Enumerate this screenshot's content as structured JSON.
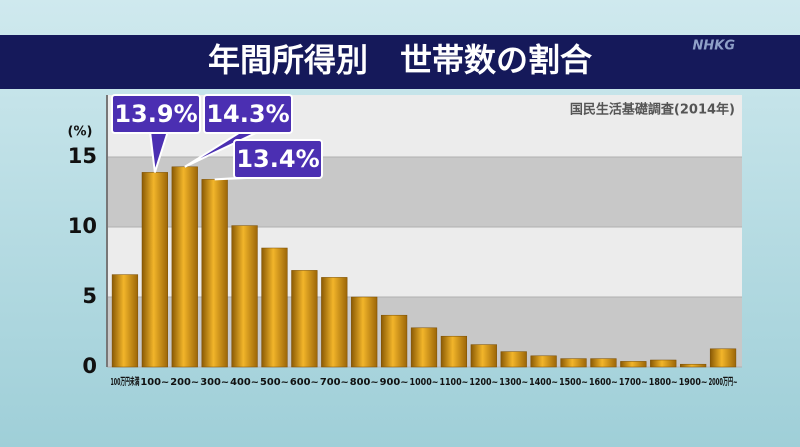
{
  "chart_data": {
    "type": "bar",
    "title": "年間所得別　世帯数の割合",
    "source": "国民生活基礎調査(2014年)",
    "logo": "NHKG",
    "y_label": "(%)",
    "categories": [
      "100万円未満",
      "100~",
      "200~",
      "300~",
      "400~",
      "500~",
      "600~",
      "700~",
      "800~",
      "900~",
      "1000~",
      "1100~",
      "1200~",
      "1300~",
      "1400~",
      "1500~",
      "1600~",
      "1700~",
      "1800~",
      "1900~",
      "2000万円~"
    ],
    "values": [
      6.6,
      13.9,
      14.3,
      13.4,
      10.1,
      8.5,
      6.9,
      6.4,
      5.0,
      3.7,
      2.8,
      2.2,
      1.6,
      1.1,
      0.8,
      0.6,
      0.6,
      0.4,
      0.5,
      0.2,
      1.3
    ],
    "value_labels": [
      null,
      "13.9%",
      "14.3%",
      "13.4%",
      null,
      null,
      null,
      null,
      null,
      null,
      null,
      null,
      null,
      null,
      null,
      null,
      null,
      null,
      null,
      null,
      null
    ],
    "color": "#d9920f",
    "ylim": [
      0,
      19
    ],
    "yticks": [
      0,
      5,
      10,
      15
    ],
    "grid": true
  }
}
